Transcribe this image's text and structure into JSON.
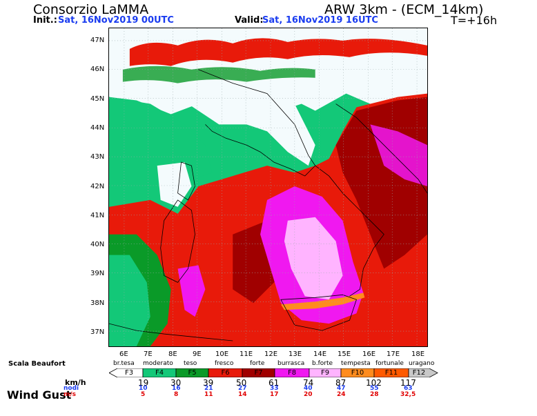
{
  "header": {
    "title": "Consorzio LaMMA",
    "model": "ARW 3km - (ECM_14km)",
    "init_label": "Init.:",
    "init_value": "Sat, 16Nov2019 00UTC",
    "valid_label": "Valid:",
    "valid_value": "Sat, 16Nov2019 16UTC",
    "step": "T=+16h"
  },
  "map": {
    "lat_labels": [
      "47N",
      "46N",
      "45N",
      "44N",
      "43N",
      "42N",
      "41N",
      "40N",
      "39N",
      "38N",
      "37N"
    ],
    "lon_labels": [
      "6E",
      "7E",
      "8E",
      "9E",
      "10E",
      "11E",
      "12E",
      "13E",
      "14E",
      "15E",
      "16E",
      "17E",
      "18E"
    ]
  },
  "legend": {
    "scale_title": "Scala Beaufort",
    "title": "Wind Gust",
    "unit_kmh": "km/h",
    "unit_knots": "nodi",
    "unit_ms": "m/s",
    "beaufort_names": [
      "br.tesa",
      "moderato",
      "teso",
      "fresco",
      "forte",
      "burrasca",
      "b.forte",
      "tempesta",
      "fortunale",
      "uragano"
    ],
    "force_labels": [
      "F3",
      "F4",
      "F5",
      "F6",
      "F7",
      "F8",
      "F9",
      "F10",
      "F11",
      "F12"
    ],
    "kmh": [
      "19",
      "30",
      "39",
      "50",
      "61",
      "74",
      "87",
      "102",
      "117"
    ],
    "knots": [
      "10",
      "16",
      "21",
      "27",
      "33",
      "40",
      "47",
      "55",
      "63"
    ],
    "ms": [
      "5",
      "8",
      "11",
      "14",
      "17",
      "20",
      "24",
      "28",
      "32,5"
    ],
    "colors": {
      "F3": "#ffffff",
      "F4": "#13c878",
      "F5": "#0a9a28",
      "F6": "#e81a0a",
      "F7": "#a00000",
      "F8": "#f018f0",
      "F9": "#ffb4ff",
      "F10": "#ff8c1e",
      "F11": "#ff5a00",
      "F12": "#c8c8c8"
    }
  }
}
